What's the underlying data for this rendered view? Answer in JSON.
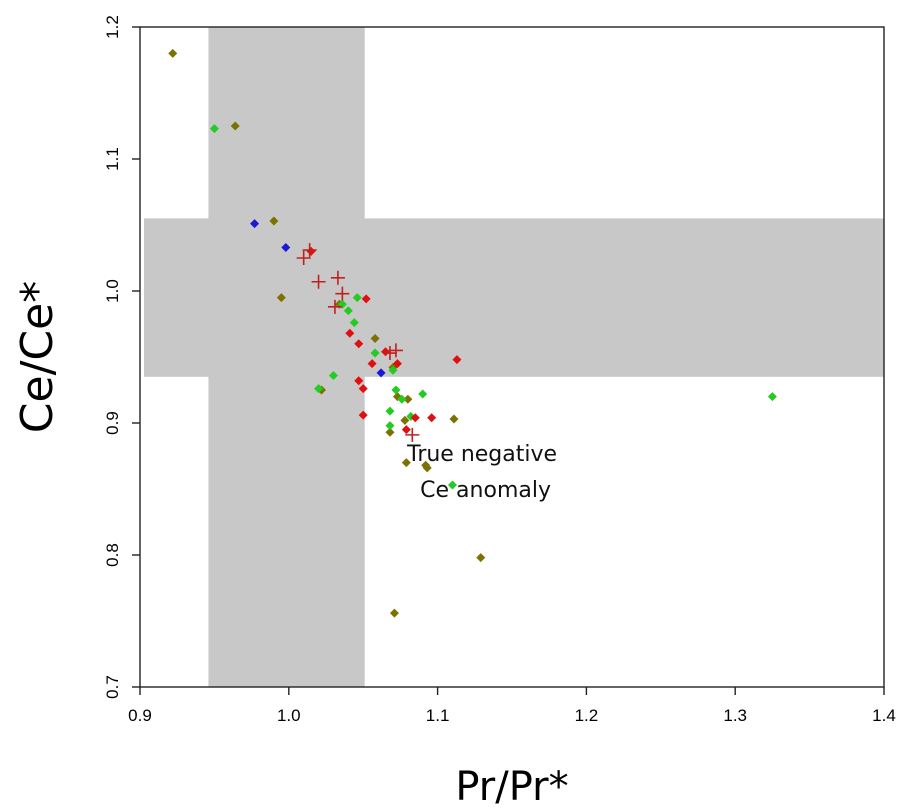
{
  "chart_data": {
    "type": "scatter",
    "xlabel": "Pr/Pr*",
    "ylabel": "Ce/Ce*",
    "xlim": [
      0.9,
      1.4
    ],
    "ylim": [
      0.7,
      1.2
    ],
    "x_ticks": [
      "0.9",
      "1.0",
      "1.1",
      "1.2",
      "1.3",
      "1.4"
    ],
    "y_ticks": [
      "0.7",
      "0.8",
      "0.9",
      "1.0",
      "1.1",
      "1.2"
    ],
    "grid": false,
    "shaded_regions": [
      {
        "orientation": "vertical",
        "x_range": [
          0.946,
          1.051
        ],
        "color": "#c8c8c8"
      },
      {
        "orientation": "horizontal",
        "y_range": [
          0.935,
          1.055
        ],
        "color": "#c8c8c8"
      }
    ],
    "annotation": {
      "lines": [
        "True negative",
        "Ce anomaly"
      ],
      "x": 1.1,
      "y": 0.85
    },
    "colors": {
      "olive": "#7b7200",
      "green": "#22cc22",
      "blue": "#1a1ad6",
      "red": "#e01010",
      "cross": "#c02020"
    },
    "series": [
      {
        "marker": "diamond",
        "color": "olive",
        "points": [
          [
            0.922,
            1.18
          ],
          [
            0.964,
            1.125
          ],
          [
            0.99,
            1.053
          ],
          [
            0.995,
            0.995
          ],
          [
            1.022,
            0.925
          ],
          [
            1.034,
            0.99
          ],
          [
            1.058,
            0.964
          ],
          [
            1.07,
            0.942
          ],
          [
            1.073,
            0.92
          ],
          [
            1.078,
            0.902
          ],
          [
            1.08,
            0.918
          ],
          [
            1.079,
            0.87
          ],
          [
            1.068,
            0.893
          ],
          [
            1.092,
            0.868
          ],
          [
            1.093,
            0.866
          ],
          [
            1.111,
            0.903
          ],
          [
            1.129,
            0.798
          ],
          [
            1.071,
            0.756
          ]
        ]
      },
      {
        "marker": "diamond",
        "color": "green",
        "points": [
          [
            0.95,
            1.123
          ],
          [
            1.02,
            0.926
          ],
          [
            1.03,
            0.936
          ],
          [
            1.036,
            0.99
          ],
          [
            1.04,
            0.985
          ],
          [
            1.044,
            0.976
          ],
          [
            1.046,
            0.995
          ],
          [
            1.058,
            0.953
          ],
          [
            1.068,
            0.909
          ],
          [
            1.068,
            0.898
          ],
          [
            1.072,
            0.925
          ],
          [
            1.076,
            0.918
          ],
          [
            1.082,
            0.905
          ],
          [
            1.09,
            0.922
          ],
          [
            1.07,
            0.94
          ],
          [
            1.11,
            0.853
          ],
          [
            1.325,
            0.92
          ]
        ]
      },
      {
        "marker": "diamond",
        "color": "blue",
        "points": [
          [
            0.977,
            1.051
          ],
          [
            0.998,
            1.033
          ],
          [
            1.062,
            0.938
          ]
        ]
      },
      {
        "marker": "diamond",
        "color": "red",
        "points": [
          [
            1.015,
            1.03
          ],
          [
            1.041,
            0.968
          ],
          [
            1.047,
            0.96
          ],
          [
            1.047,
            0.932
          ],
          [
            1.05,
            0.926
          ],
          [
            1.05,
            0.906
          ],
          [
            1.052,
            0.994
          ],
          [
            1.056,
            0.945
          ],
          [
            1.065,
            0.954
          ],
          [
            1.073,
            0.945
          ],
          [
            1.079,
            0.895
          ],
          [
            1.085,
            0.904
          ],
          [
            1.096,
            0.904
          ],
          [
            1.113,
            0.948
          ]
        ]
      },
      {
        "marker": "cross",
        "color": "cross",
        "points": [
          [
            1.01,
            1.025
          ],
          [
            1.014,
            1.031
          ],
          [
            1.02,
            1.007
          ],
          [
            1.031,
            0.988
          ],
          [
            1.033,
            1.01
          ],
          [
            1.036,
            0.998
          ],
          [
            1.068,
            0.953
          ],
          [
            1.072,
            0.955
          ],
          [
            1.083,
            0.891
          ]
        ]
      }
    ]
  }
}
